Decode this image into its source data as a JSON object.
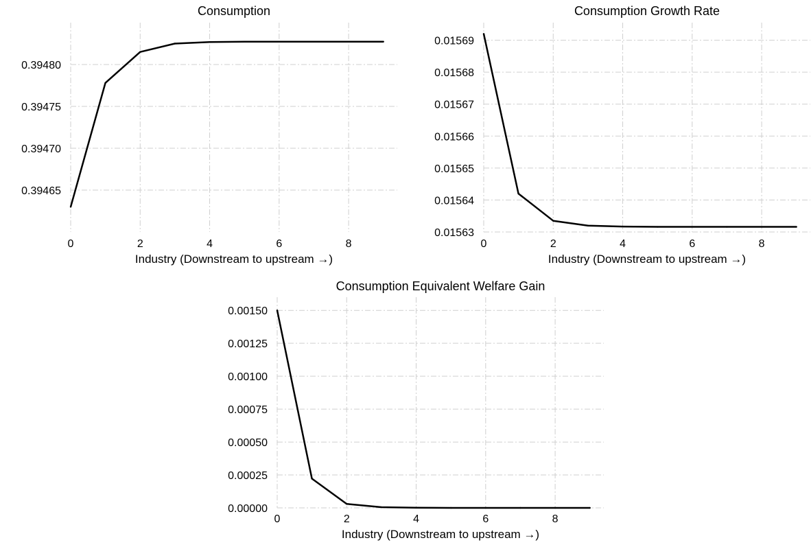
{
  "chart_data": [
    {
      "type": "line",
      "title": "Consumption",
      "xlabel": "Industry (Downstream to upstream →)",
      "ylabel": "",
      "x": [
        0,
        1,
        2,
        3,
        4,
        5,
        6,
        7,
        8,
        9
      ],
      "values": [
        0.39463,
        0.394778,
        0.394815,
        0.394825,
        0.3948268,
        0.3948272,
        0.3948273,
        0.3948273,
        0.3948273,
        0.3948273
      ],
      "xlim": [
        0,
        9.4
      ],
      "ylim": [
        0.3946,
        0.39485
      ],
      "xticks": [
        0,
        2,
        4,
        6,
        8
      ],
      "xtick_labels": [
        "0",
        "2",
        "4",
        "6",
        "8"
      ],
      "yticks": [
        0.39465,
        0.3947,
        0.39475,
        0.3948
      ],
      "ytick_labels": [
        "0.39465",
        "0.39470",
        "0.39475",
        "0.39480"
      ],
      "grid": true,
      "line_color": "#000000"
    },
    {
      "type": "line",
      "title": "Consumption Growth Rate",
      "xlabel": "Industry (Downstream to upstream →)",
      "ylabel": "",
      "x": [
        0,
        1,
        2,
        3,
        4,
        5,
        6,
        7,
        8,
        9
      ],
      "values": [
        0.015692,
        0.015642,
        0.0156335,
        0.015632,
        0.0156317,
        0.0156316,
        0.0156316,
        0.0156316,
        0.0156316,
        0.0156316
      ],
      "xlim": [
        0,
        9.4
      ],
      "ylim": [
        0.01563,
        0.0156955
      ],
      "xticks": [
        0,
        2,
        4,
        6,
        8
      ],
      "xtick_labels": [
        "0",
        "2",
        "4",
        "6",
        "8"
      ],
      "yticks": [
        0.01563,
        0.01564,
        0.01565,
        0.01566,
        0.01567,
        0.01568,
        0.01569
      ],
      "ytick_labels": [
        "0.01563",
        "0.01564",
        "0.01565",
        "0.01566",
        "0.01567",
        "0.01568",
        "0.01569"
      ],
      "grid": true,
      "line_color": "#000000"
    },
    {
      "type": "line",
      "title": "Consumption Equivalent Welfare Gain",
      "xlabel": "Industry (Downstream to upstream →)",
      "ylabel": "",
      "x": [
        0,
        1,
        2,
        3,
        4,
        5,
        6,
        7,
        8,
        9
      ],
      "values": [
        0.0015,
        0.000222,
        3e-05,
        5e-06,
        1e-06,
        0.0,
        0.0,
        0.0,
        0.0,
        0.0
      ],
      "xlim": [
        0,
        9.4
      ],
      "ylim": [
        0,
        0.0016
      ],
      "xticks": [
        0,
        2,
        4,
        6,
        8
      ],
      "xtick_labels": [
        "0",
        "2",
        "4",
        "6",
        "8"
      ],
      "yticks": [
        0,
        0.00025,
        0.0005,
        0.00075,
        0.001,
        0.00125,
        0.0015
      ],
      "ytick_labels": [
        "0.00000",
        "0.00025",
        "0.00050",
        "0.00075",
        "0.00100",
        "0.00125",
        "0.00150"
      ],
      "grid": true,
      "line_color": "#000000"
    }
  ]
}
